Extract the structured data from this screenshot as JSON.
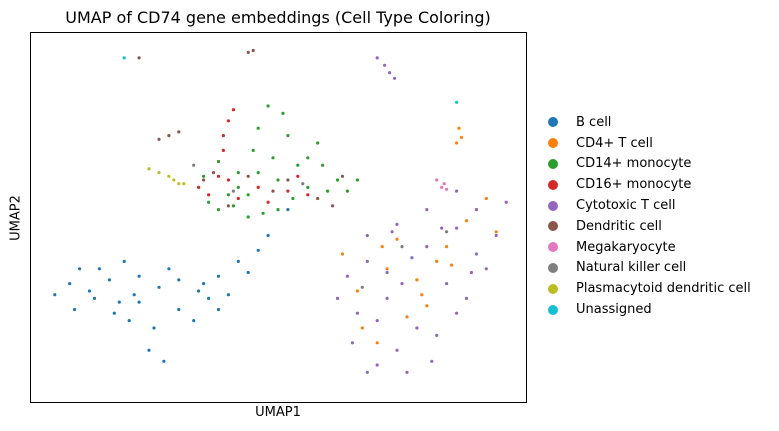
{
  "chart_data": {
    "type": "scatter",
    "title": "UMAP of CD74 gene embeddings (Cell Type Coloring)",
    "xlabel": "UMAP1",
    "ylabel": "UMAP2",
    "xticks": [],
    "yticks": [],
    "xlim": [
      0,
      100
    ],
    "ylim": [
      0,
      100
    ],
    "grid": false,
    "legend_placement": "outside-right",
    "series": [
      {
        "name": "B cell",
        "color": "#1f77b4",
        "values": [
          [
            8,
            32
          ],
          [
            12,
            30
          ],
          [
            16,
            33
          ],
          [
            22,
            34
          ],
          [
            26,
            31
          ],
          [
            30,
            33
          ],
          [
            34,
            30
          ],
          [
            38,
            34
          ],
          [
            42,
            38
          ],
          [
            46,
            41
          ],
          [
            20,
            22
          ],
          [
            24,
            14
          ],
          [
            27,
            11
          ],
          [
            10,
            36
          ],
          [
            18,
            27
          ],
          [
            30,
            25
          ],
          [
            36,
            28
          ],
          [
            5,
            29
          ],
          [
            14,
            36
          ],
          [
            28,
            36
          ],
          [
            40,
            29
          ],
          [
            22,
            27
          ],
          [
            33,
            22
          ],
          [
            44,
            35
          ],
          [
            48,
            45
          ],
          [
            52,
            52
          ],
          [
            19,
            38
          ],
          [
            9,
            25
          ],
          [
            17,
            24
          ],
          [
            25,
            20
          ],
          [
            35,
            32
          ],
          [
            38,
            25
          ],
          [
            21,
            29
          ],
          [
            13,
            28
          ]
        ]
      },
      {
        "name": "CD4+ T cell",
        "color": "#ff7f0e",
        "values": [
          [
            66,
            30
          ],
          [
            72,
            36
          ],
          [
            78,
            33
          ],
          [
            84,
            42
          ],
          [
            88,
            49
          ],
          [
            92,
            55
          ],
          [
            80,
            26
          ],
          [
            70,
            16
          ],
          [
            76,
            23
          ],
          [
            85,
            37
          ],
          [
            94,
            46
          ],
          [
            63,
            40
          ],
          [
            74,
            44
          ],
          [
            67,
            20
          ],
          [
            82,
            38
          ],
          [
            90,
            52
          ],
          [
            86.5,
            74
          ],
          [
            86,
            70
          ],
          [
            87,
            71.5
          ],
          [
            79,
            29
          ],
          [
            71,
            42
          ]
        ]
      },
      {
        "name": "CD14+ monocyte",
        "color": "#2d9e2d",
        "values": [
          [
            38,
            52
          ],
          [
            44,
            56
          ],
          [
            50,
            60
          ],
          [
            56,
            58
          ],
          [
            60,
            57
          ],
          [
            46,
            62
          ],
          [
            54,
            64
          ],
          [
            42,
            58
          ],
          [
            58,
            70
          ],
          [
            52,
            72
          ],
          [
            48,
            80
          ],
          [
            46,
            74
          ],
          [
            40,
            56
          ],
          [
            62,
            60
          ],
          [
            64,
            57
          ],
          [
            50,
            52
          ],
          [
            44,
            50
          ],
          [
            36,
            54
          ],
          [
            56,
            66
          ],
          [
            51,
            78
          ],
          [
            38,
            65
          ],
          [
            35,
            61
          ],
          [
            42,
            62
          ],
          [
            59,
            64
          ],
          [
            53,
            55
          ],
          [
            47,
            51
          ],
          [
            66,
            60
          ],
          [
            45,
            68
          ],
          [
            49,
            66
          ],
          [
            41,
            53
          ]
        ]
      },
      {
        "name": "CD16+ monocyte",
        "color": "#d62728",
        "values": [
          [
            39,
            72
          ],
          [
            40,
            76
          ],
          [
            39,
            68
          ],
          [
            36,
            56
          ],
          [
            42,
            55
          ],
          [
            46,
            58
          ],
          [
            52,
            57
          ],
          [
            56,
            56
          ],
          [
            40,
            60
          ],
          [
            48,
            54
          ],
          [
            34,
            58
          ],
          [
            38,
            61
          ],
          [
            41,
            79
          ],
          [
            54,
            61
          ]
        ]
      },
      {
        "name": "Cytotoxic T cell",
        "color": "#9467bd",
        "values": [
          [
            64,
            34
          ],
          [
            68,
            45
          ],
          [
            74,
            48
          ],
          [
            80,
            52
          ],
          [
            86,
            47
          ],
          [
            90,
            40
          ],
          [
            94,
            45
          ],
          [
            78,
            20
          ],
          [
            84,
            32
          ],
          [
            72,
            28
          ],
          [
            66,
            24
          ],
          [
            70,
            10
          ],
          [
            76,
            8
          ],
          [
            82,
            18
          ],
          [
            88,
            28
          ],
          [
            92,
            36
          ],
          [
            68,
            38
          ],
          [
            62,
            28
          ],
          [
            74,
            14
          ],
          [
            80,
            42
          ],
          [
            86,
            24
          ],
          [
            90,
            52
          ],
          [
            96,
            54
          ],
          [
            72,
            35
          ],
          [
            68,
            8
          ],
          [
            73,
            46
          ],
          [
            77,
            39
          ],
          [
            83,
            47
          ],
          [
            89,
            35
          ],
          [
            65,
            16
          ],
          [
            70,
            22
          ],
          [
            75,
            32
          ],
          [
            81,
            11
          ],
          [
            86,
            57
          ],
          [
            70,
            93
          ],
          [
            71.5,
            91
          ],
          [
            72.5,
            89
          ],
          [
            73.5,
            87.5
          ]
        ]
      },
      {
        "name": "Dendritic cell",
        "color": "#8c564b",
        "values": [
          [
            26,
            71
          ],
          [
            28,
            72
          ],
          [
            30,
            73
          ],
          [
            37,
            62
          ],
          [
            44,
            61
          ],
          [
            52,
            60
          ],
          [
            58,
            55
          ],
          [
            63,
            61
          ],
          [
            40,
            53
          ],
          [
            49,
            57
          ],
          [
            22,
            93
          ],
          [
            44,
            94.5
          ],
          [
            45,
            95
          ],
          [
            61,
            53
          ],
          [
            35,
            60
          ]
        ]
      },
      {
        "name": "Megakaryocyte",
        "color": "#e377c2",
        "values": [
          [
            82,
            60
          ],
          [
            83,
            58
          ],
          [
            84,
            57.5
          ],
          [
            83.5,
            59
          ]
        ]
      },
      {
        "name": "Natural killer cell",
        "color": "#7f7f7f",
        "values": [
          [
            41,
            57
          ],
          [
            55,
            59
          ],
          [
            33,
            64
          ],
          [
            75,
            42
          ],
          [
            67,
            31
          ],
          [
            84,
            46
          ]
        ]
      },
      {
        "name": "Plasmacytoid dendritic cell",
        "color": "#bcbd22",
        "values": [
          [
            24,
            63
          ],
          [
            26,
            62
          ],
          [
            28,
            61
          ],
          [
            29,
            60
          ],
          [
            30,
            59
          ],
          [
            31,
            59
          ]
        ]
      },
      {
        "name": "Unassigned",
        "color": "#17becf",
        "values": [
          [
            19,
            93
          ],
          [
            86,
            81
          ]
        ]
      }
    ]
  },
  "legend": {
    "entries": [
      {
        "label": "B cell",
        "color": "#1f77b4"
      },
      {
        "label": "CD4+ T cell",
        "color": "#ff7f0e"
      },
      {
        "label": "CD14+ monocyte",
        "color": "#2d9e2d"
      },
      {
        "label": "CD16+ monocyte",
        "color": "#d62728"
      },
      {
        "label": "Cytotoxic T cell",
        "color": "#9467bd"
      },
      {
        "label": "Dendritic cell",
        "color": "#8c564b"
      },
      {
        "label": "Megakaryocyte",
        "color": "#e377c2"
      },
      {
        "label": "Natural killer cell",
        "color": "#7f7f7f"
      },
      {
        "label": "Plasmacytoid dendritic cell",
        "color": "#bcbd22"
      },
      {
        "label": "Unassigned",
        "color": "#17becf"
      }
    ]
  }
}
